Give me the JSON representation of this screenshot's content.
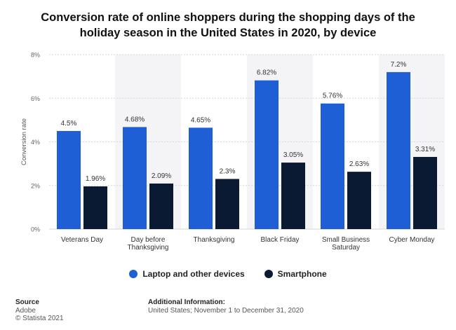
{
  "colors": {
    "laptop": "#1f5fd6",
    "smartphone": "#0b1a33"
  },
  "chart_data": {
    "type": "bar",
    "title": "Conversion rate of online shoppers during the shopping days of the holiday season in the United States in 2020, by device",
    "ylabel": "Conversion rate",
    "xlabel": "",
    "ylim": [
      0,
      8
    ],
    "yticks": [
      "0%",
      "2%",
      "4%",
      "6%",
      "8%"
    ],
    "grid": true,
    "legend_position": "bottom",
    "categories": [
      [
        "Veterans Day"
      ],
      [
        "Day before",
        "Thanksgiving"
      ],
      [
        "Thanksgiving"
      ],
      [
        "Black Friday"
      ],
      [
        "Small Business",
        "Saturday"
      ],
      [
        "Cyber Monday"
      ]
    ],
    "series": [
      {
        "name": "Laptop and other devices",
        "values": [
          4.5,
          4.68,
          4.65,
          6.82,
          5.76,
          7.2
        ],
        "labels": [
          "4.5%",
          "4.68%",
          "4.65%",
          "6.82%",
          "5.76%",
          "7.2%"
        ]
      },
      {
        "name": "Smartphone",
        "values": [
          1.96,
          2.09,
          2.3,
          3.05,
          2.63,
          3.31
        ],
        "labels": [
          "1.96%",
          "2.09%",
          "2.3%",
          "3.05%",
          "2.63%",
          "3.31%"
        ]
      }
    ]
  },
  "footer": {
    "source_heading": "Source",
    "source_name": "Adobe",
    "copyright": "© Statista 2021",
    "additional_heading": "Additional Information:",
    "additional_text": "United States; November 1 to December 31, 2020"
  }
}
